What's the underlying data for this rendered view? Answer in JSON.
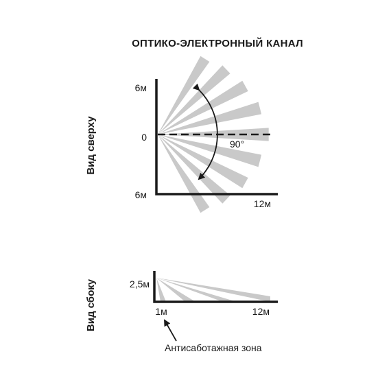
{
  "title": "ОПТИКО-ЭЛЕКТРОННЫЙ КАНАЛ",
  "top_view": {
    "label": "Вид сверху",
    "y_top": "6м",
    "y_zero": "0",
    "y_bottom": "6м",
    "x_end": "12м",
    "angle": "90°",
    "beam_count": 9
  },
  "side_view": {
    "label": "Вид сбоку",
    "height": "2,5м",
    "x_near": "1м",
    "x_end": "12м",
    "beam_count": 4
  },
  "note": "Антисаботажная зона",
  "colors": {
    "beam": "#c9c9c9",
    "axis": "#1a1a1a"
  }
}
